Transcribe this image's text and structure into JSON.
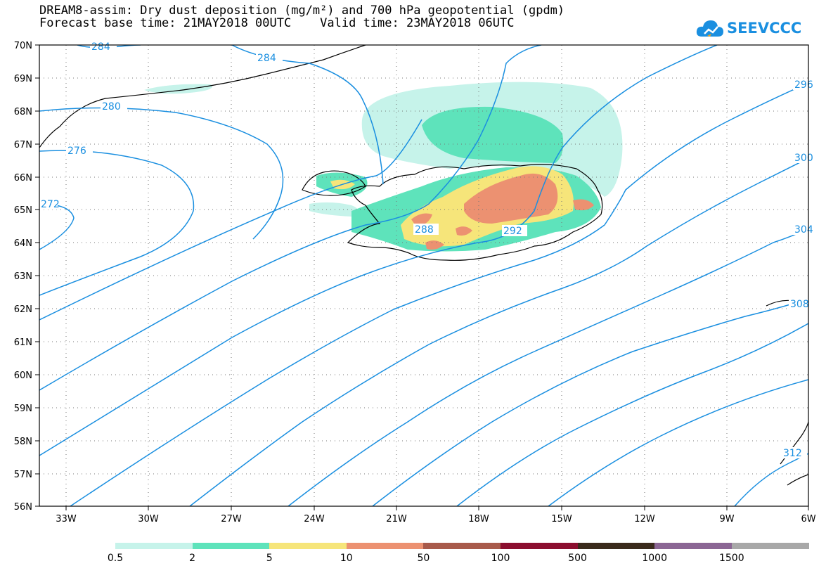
{
  "title": {
    "line1": "DREAM8-assim: Dry dust deposition (mg/m²) and 700 hPa geopotential (gpdm)",
    "line2": "Forecast base time: 21MAY2018 00UTC    Valid time: 23MAY2018 06UTC"
  },
  "logo": {
    "text": "SEEVCCC",
    "icon": "cloud-logo-icon"
  },
  "map": {
    "lat_labels": [
      "70N",
      "69N",
      "68N",
      "67N",
      "66N",
      "65N",
      "64N",
      "63N",
      "62N",
      "61N",
      "60N",
      "59N",
      "58N",
      "57N",
      "56N"
    ],
    "lon_labels": [
      "33W",
      "30W",
      "27W",
      "24W",
      "21W",
      "18W",
      "15W",
      "12W",
      "9W",
      "6W"
    ],
    "lat_range": [
      56,
      70
    ],
    "lon_range": [
      -34.5,
      -6
    ],
    "contour_labels": [
      "284",
      "284",
      "280",
      "276",
      "272",
      "288",
      "292",
      "296",
      "300",
      "304",
      "308",
      "312"
    ]
  },
  "legend": {
    "labels": [
      "0.5",
      "2",
      "5",
      "10",
      "50",
      "100",
      "500",
      "1000",
      "1500"
    ],
    "colors": [
      "#c6f3ea",
      "#5ee3bb",
      "#f6e57a",
      "#ec9171",
      "#a85a4b",
      "#8b0e2f",
      "#3a2a1c",
      "#8b6694",
      "#a8a8a8"
    ]
  }
}
